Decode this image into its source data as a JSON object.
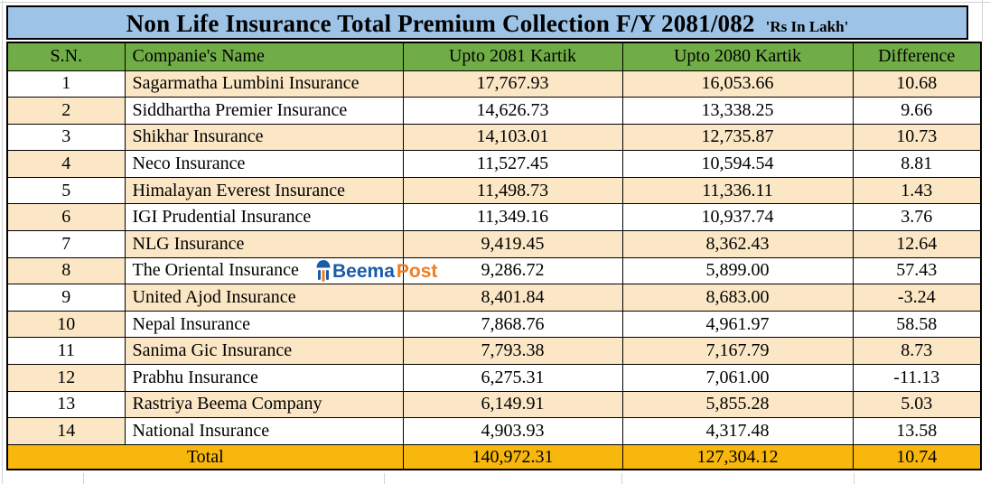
{
  "title": {
    "main": "Non Life Insurance Total Premium Collection F/Y 2081/082",
    "unit": "'Rs In Lakh'"
  },
  "columns": [
    "S.N.",
    "Companie's Name",
    "Upto 2081 Kartik",
    "Upto 2080 Kartik",
    "Difference"
  ],
  "rows": [
    {
      "sn": "1",
      "name": "Sagarmatha Lumbini Insurance",
      "upto_2081": "17,767.93",
      "upto_2080": "16,053.66",
      "difference": "10.68"
    },
    {
      "sn": "2",
      "name": "Siddhartha Premier Insurance",
      "upto_2081": "14,626.73",
      "upto_2080": "13,338.25",
      "difference": "9.66"
    },
    {
      "sn": "3",
      "name": "Shikhar Insurance",
      "upto_2081": "14,103.01",
      "upto_2080": "12,735.87",
      "difference": "10.73"
    },
    {
      "sn": "4",
      "name": "Neco Insurance",
      "upto_2081": "11,527.45",
      "upto_2080": "10,594.54",
      "difference": "8.81"
    },
    {
      "sn": "5",
      "name": "Himalayan Everest Insurance",
      "upto_2081": "11,498.73",
      "upto_2080": "11,336.11",
      "difference": "1.43"
    },
    {
      "sn": "6",
      "name": "IGI Prudential Insurance",
      "upto_2081": "11,349.16",
      "upto_2080": "10,937.74",
      "difference": "3.76"
    },
    {
      "sn": "7",
      "name": "NLG Insurance",
      "upto_2081": "9,419.45",
      "upto_2080": "8,362.43",
      "difference": "12.64"
    },
    {
      "sn": "8",
      "name": "The Oriental Insurance",
      "upto_2081": "9,286.72",
      "upto_2080": "5,899.00",
      "difference": "57.43"
    },
    {
      "sn": "9",
      "name": "United Ajod Insurance",
      "upto_2081": "8,401.84",
      "upto_2080": "8,683.00",
      "difference": "-3.24"
    },
    {
      "sn": "10",
      "name": "Nepal Insurance",
      "upto_2081": "7,868.76",
      "upto_2080": "4,961.97",
      "difference": "58.58"
    },
    {
      "sn": "11",
      "name": "Sanima Gic Insurance",
      "upto_2081": "7,793.38",
      "upto_2080": "7,167.79",
      "difference": "8.73"
    },
    {
      "sn": "12",
      "name": "Prabhu Insurance",
      "upto_2081": "6,275.31",
      "upto_2080": "7,061.00",
      "difference": "-11.13"
    },
    {
      "sn": "13",
      "name": "Rastriya Beema Company",
      "upto_2081": "6,149.91",
      "upto_2080": "5,855.28",
      "difference": "5.03"
    },
    {
      "sn": "14",
      "name": "National Insurance",
      "upto_2081": "4,903.93",
      "upto_2080": "4,317.48",
      "difference": "13.58"
    }
  ],
  "total": {
    "label": "Total",
    "upto_2081": "140,972.31",
    "upto_2080": "127,304.12",
    "difference": "10.74"
  },
  "watermark": {
    "icon": "umbrella-icon",
    "beema": "Beema",
    "post": "Post"
  },
  "colors": {
    "title_bg": "#9DC3E6",
    "header_bg": "#70AD47",
    "row_cream": "#FBE7C5",
    "total_bg": "#F8B70D",
    "border": "#000000",
    "beema_blue": "#1A5CA8",
    "post_orange": "#EF7D23"
  }
}
